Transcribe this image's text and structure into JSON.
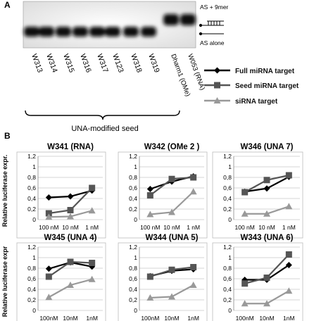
{
  "panel_labels": {
    "a": "A",
    "b": "B"
  },
  "gel": {
    "lanes": [
      "W313",
      "W314",
      "W315",
      "W316",
      "W317",
      "W123",
      "W318",
      "W319",
      "Dharm1 (OMe)",
      "W053 (RNA)"
    ],
    "group_label": "UNA-modified seed",
    "annotations": {
      "upper": "AS + 9mer",
      "lower": "AS alone"
    }
  },
  "legend": [
    {
      "label": "Full miRNA target",
      "color": "#000000",
      "marker": "diamond"
    },
    {
      "label": "Seed miRNA target",
      "color": "#555555",
      "marker": "square"
    },
    {
      "label": "siRNA target",
      "color": "#999999",
      "marker": "triangle"
    }
  ],
  "chart_data": [
    {
      "type": "line",
      "title": "W341 (RNA)",
      "ylabel": "Relative luciferase expr.",
      "categories": [
        "100 nM",
        "10 nM",
        "1 nM"
      ],
      "ylim": [
        0,
        1.2
      ],
      "yticks": [
        "0",
        "0,2",
        "0,4",
        "0,6",
        "0,8",
        "1",
        "1,2"
      ],
      "series": [
        {
          "name": "Full miRNA target",
          "values": [
            0.42,
            0.44,
            0.55
          ]
        },
        {
          "name": "Seed miRNA target",
          "values": [
            0.12,
            0.18,
            0.6
          ]
        },
        {
          "name": "siRNA target",
          "values": [
            0.05,
            0.06,
            0.17
          ]
        }
      ]
    },
    {
      "type": "line",
      "title": "W342 (OMe 2 )",
      "ylabel": "",
      "categories": [
        "100 nM",
        "10 nM",
        "1 nM"
      ],
      "ylim": [
        0,
        1.2
      ],
      "yticks": [
        "0",
        "0,2",
        "0,4",
        "0,6",
        "0,8",
        "1",
        "1,2"
      ],
      "series": [
        {
          "name": "Full miRNA target",
          "values": [
            0.58,
            0.72,
            0.82
          ]
        },
        {
          "name": "Seed miRNA target",
          "values": [
            0.46,
            0.77,
            0.8
          ]
        },
        {
          "name": "siRNA target",
          "values": [
            0.1,
            0.14,
            0.53
          ]
        }
      ]
    },
    {
      "type": "line",
      "title": "W346 (UNA 7)",
      "ylabel": "",
      "categories": [
        "100 nM",
        "10 nM",
        "1 nM"
      ],
      "ylim": [
        0,
        1.2
      ],
      "yticks": [
        "0",
        "0,2",
        "0,4",
        "0,6",
        "0,8",
        "1",
        "1,2"
      ],
      "series": [
        {
          "name": "Full miRNA target",
          "values": [
            0.53,
            0.59,
            0.81
          ]
        },
        {
          "name": "Seed miRNA target",
          "values": [
            0.52,
            0.75,
            0.84
          ]
        },
        {
          "name": "siRNA target",
          "values": [
            0.11,
            0.11,
            0.25
          ]
        }
      ]
    },
    {
      "type": "line",
      "title": "W345 (UNA 4)",
      "ylabel": "Relative luciferase expr",
      "categories": [
        "100nM",
        "10nM",
        "1nM"
      ],
      "ylim": [
        0,
        1.2
      ],
      "yticks": [
        "0",
        "0,2",
        "0,4",
        "0,6",
        "0,8",
        "1",
        "1,2"
      ],
      "series": [
        {
          "name": "Full miRNA target",
          "values": [
            0.79,
            0.91,
            0.83
          ]
        },
        {
          "name": "Seed miRNA target",
          "values": [
            0.64,
            0.92,
            0.9
          ]
        },
        {
          "name": "siRNA target",
          "values": [
            0.25,
            0.48,
            0.59
          ]
        }
      ]
    },
    {
      "type": "line",
      "title": "W344 (UNA 5)",
      "ylabel": "",
      "categories": [
        "100nM",
        "10nM",
        "1nM"
      ],
      "ylim": [
        0,
        1.2
      ],
      "yticks": [
        "0",
        "0,2",
        "0,4",
        "0,6",
        "0,8",
        "1",
        "1,2"
      ],
      "series": [
        {
          "name": "Full miRNA target",
          "values": [
            0.65,
            0.75,
            0.78
          ]
        },
        {
          "name": "Seed miRNA target",
          "values": [
            0.64,
            0.77,
            0.82
          ]
        },
        {
          "name": "siRNA target",
          "values": [
            0.24,
            0.26,
            0.48
          ]
        }
      ]
    },
    {
      "type": "line",
      "title": "W343 (UNA 6)",
      "ylabel": "",
      "categories": [
        "100nM",
        "10nM",
        "1nM"
      ],
      "ylim": [
        0,
        1.2
      ],
      "yticks": [
        "0",
        "0,2",
        "0,4",
        "0,6",
        "0,8",
        "1",
        "1,2"
      ],
      "series": [
        {
          "name": "Full miRNA target",
          "values": [
            0.58,
            0.58,
            0.86
          ]
        },
        {
          "name": "Seed miRNA target",
          "values": [
            0.51,
            0.62,
            1.06
          ]
        },
        {
          "name": "siRNA target",
          "values": [
            0.13,
            0.13,
            0.37
          ]
        }
      ]
    }
  ]
}
